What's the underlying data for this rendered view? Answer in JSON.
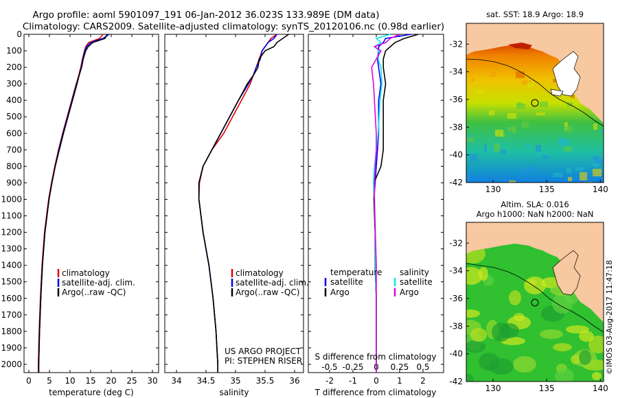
{
  "header": {
    "line1": "Argo profile: aoml 5901097_191 06-Jan-2012 36.023S 133.989E (DM data)",
    "line2": "Climatology: CARS2009. Satellite-adjusted climatology: synTS_20120106.nc (0.98d earlier)"
  },
  "watermark": "©IMOS 03-Aug-2017 11:47:18",
  "colors": {
    "climatology": "#e00000",
    "satellite": "#0000ee",
    "argo": "#000000",
    "s_satellite": "#00e8e8",
    "s_argo": "#e000e0",
    "land": "#f8c8a0"
  },
  "legend_profiles": {
    "climatology": "climatology",
    "satellite": "satellite-adj. clim.",
    "argo": "Argo(..raw -QC)"
  },
  "legend_diff": {
    "temp_heading": "temperature",
    "sal_heading": "salinity",
    "satellite": "satellite",
    "argo": "Argo"
  },
  "credit": {
    "line1": "US ARGO PROJECT",
    "line2": "PI: STEPHEN RISER"
  },
  "chart_data": [
    {
      "type": "line",
      "xlabel": "temperature (deg C)",
      "xticks": [
        "0",
        "5",
        "10",
        "15",
        "20",
        "25",
        "30"
      ],
      "ylim": [
        0,
        2050
      ],
      "yticks": [
        "0",
        "100",
        "200",
        "300",
        "400",
        "500",
        "600",
        "700",
        "800",
        "900",
        "1000",
        "1100",
        "1200",
        "1300",
        "1400",
        "1500",
        "1600",
        "1700",
        "1800",
        "1900",
        "2000"
      ],
      "depth": [
        0,
        25,
        50,
        75,
        100,
        150,
        200,
        250,
        300,
        400,
        500,
        600,
        700,
        800,
        900,
        1000,
        1200,
        1400,
        1600,
        1800,
        2000,
        2050
      ],
      "series": [
        {
          "name": "climatology",
          "values": [
            18.0,
            17.2,
            14.5,
            13.8,
            13.5,
            13.0,
            12.6,
            12.1,
            11.5,
            10.4,
            9.3,
            8.2,
            7.2,
            6.3,
            5.5,
            4.8,
            3.8,
            3.2,
            2.8,
            2.5,
            2.3,
            2.3
          ]
        },
        {
          "name": "satellite-adj. clim.",
          "values": [
            19.5,
            18.0,
            15.0,
            14.0,
            13.6,
            13.1,
            12.7,
            12.2,
            11.6,
            10.5,
            9.4,
            8.3,
            7.3,
            6.4,
            5.6,
            4.9,
            3.9,
            3.3,
            2.9,
            2.6,
            2.4,
            2.4
          ]
        },
        {
          "name": "Argo(..raw -QC)",
          "values": [
            19.0,
            18.5,
            15.5,
            14.4,
            13.8,
            13.2,
            12.8,
            12.2,
            11.7,
            10.6,
            9.5,
            8.4,
            7.4,
            6.4,
            5.6,
            4.9,
            3.9,
            3.3,
            2.9,
            2.6,
            2.4,
            2.4
          ]
        }
      ]
    },
    {
      "type": "line",
      "xlabel": "salinity",
      "xticks": [
        "34",
        "34.5",
        "35",
        "35.5",
        "36"
      ],
      "ylim": [
        0,
        2050
      ],
      "depth": [
        0,
        25,
        50,
        75,
        100,
        150,
        200,
        250,
        300,
        400,
        500,
        600,
        700,
        800,
        900,
        1000,
        1200,
        1400,
        1600,
        1800,
        2000,
        2050
      ],
      "series": [
        {
          "name": "climatology",
          "values": [
            35.7,
            35.6,
            35.55,
            35.5,
            35.45,
            35.4,
            35.35,
            35.3,
            35.25,
            35.1,
            34.95,
            34.8,
            34.6,
            34.45,
            34.39,
            34.38,
            34.45,
            34.55,
            34.62,
            34.67,
            34.7,
            34.7
          ]
        },
        {
          "name": "satellite-adj. clim.",
          "values": [
            35.7,
            35.65,
            35.55,
            35.5,
            35.45,
            35.42,
            35.35,
            35.3,
            35.22,
            35.05,
            34.9,
            34.75,
            34.6,
            34.45,
            34.38,
            34.38,
            34.45,
            34.55,
            34.62,
            34.67,
            34.7,
            34.7
          ]
        },
        {
          "name": "Argo(..raw -QC)",
          "values": [
            35.9,
            35.8,
            35.7,
            35.65,
            35.5,
            35.4,
            35.38,
            35.3,
            35.2,
            35.05,
            34.9,
            34.75,
            34.6,
            34.45,
            34.38,
            34.38,
            34.45,
            34.55,
            34.62,
            34.67,
            34.7,
            34.7
          ]
        }
      ]
    },
    {
      "type": "line",
      "xlabel": "T difference from climatology",
      "xlabel_top": "S difference from climatology",
      "xticks": [
        "-2",
        "-1",
        "0",
        "1",
        "2"
      ],
      "xticks_top": [
        "-0.5",
        "-0.25",
        "0",
        "0.25",
        "0.5"
      ],
      "ylim": [
        0,
        2050
      ],
      "depth": [
        0,
        25,
        50,
        75,
        100,
        150,
        200,
        300,
        400,
        500,
        600,
        700,
        800,
        900,
        1000,
        1200,
        1400,
        1600,
        1800,
        2000,
        2050
      ],
      "series": [
        {
          "name": "temperature satellite",
          "values": [
            1.5,
            0.4,
            0.3,
            0.1,
            0.1,
            0.05,
            0.1,
            0.2,
            0.1,
            0.1,
            0.1,
            0.05,
            0.0,
            -0.05,
            -0.1,
            -0.05,
            -0.05,
            0.0,
            0.0,
            0.0,
            0.0
          ]
        },
        {
          "name": "temperature Argo",
          "values": [
            1.8,
            1.2,
            0.8,
            0.6,
            0.4,
            0.3,
            0.3,
            0.4,
            0.3,
            0.3,
            0.3,
            0.3,
            0.2,
            -0.1,
            -0.1,
            -0.05,
            -0.05,
            0.0,
            0.0,
            0.0,
            0.0
          ]
        },
        {
          "name": "salinity satellite",
          "values": [
            0.15,
            0.0,
            0.05,
            -0.02,
            0.03,
            0.02,
            0.05,
            0.06,
            0.04,
            0.03,
            0.02,
            0.0,
            -0.02,
            -0.03,
            -0.02,
            -0.01,
            -0.01,
            0.0,
            0.0,
            0.0,
            0.0
          ]
        },
        {
          "name": "salinity Argo",
          "values": [
            0.25,
            0.15,
            0.1,
            -0.02,
            0.05,
            0.0,
            -0.05,
            -0.03,
            -0.02,
            -0.01,
            0.0,
            0.0,
            -0.01,
            -0.02,
            -0.02,
            -0.01,
            0.0,
            0.0,
            0.0,
            0.0,
            0.0
          ]
        }
      ]
    },
    {
      "type": "heatmap",
      "title": "sat. SST: 18.9 Argo: 18.9",
      "xticks": [
        "130",
        "135",
        "140"
      ],
      "yticks": [
        "-32",
        "-34",
        "-36",
        "-38",
        "-40",
        "-42"
      ],
      "xlim": [
        127.5,
        140.3
      ],
      "ylim": [
        -42,
        -30.5
      ],
      "marker": [
        134.0,
        -36.0
      ]
    },
    {
      "type": "heatmap",
      "title_line1": "Altim. SLA: 0.016",
      "title_line2": "Argo h1000: NaN h2000: NaN",
      "xticks": [
        "130",
        "135",
        "140"
      ],
      "yticks": [
        "-32",
        "-34",
        "-36",
        "-38",
        "-40",
        "-42"
      ],
      "xlim": [
        127.5,
        140.3
      ],
      "ylim": [
        -42,
        -30.5
      ],
      "marker": [
        134.0,
        -36.0
      ]
    }
  ]
}
